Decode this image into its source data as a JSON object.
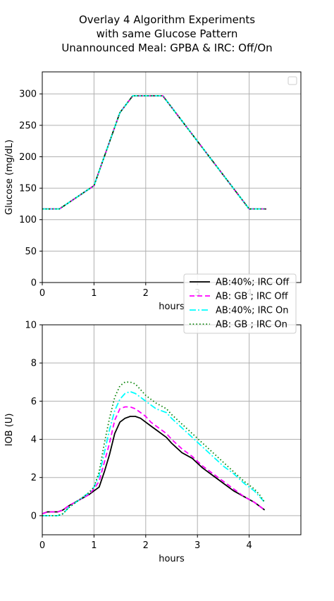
{
  "figure": {
    "title_lines": [
      "Overlay 4 Algorithm Experiments",
      "with same Glucose Pattern",
      "Unannounced Meal: GPBA & IRC: Off/On"
    ],
    "background": "#ffffff"
  },
  "chart_data": [
    {
      "type": "line",
      "title": "",
      "xlabel": "hours",
      "ylabel": "Glucose (mg/dL)",
      "xlim": [
        0,
        5
      ],
      "ylim": [
        0,
        335
      ],
      "xticks": [
        0,
        1,
        2,
        3,
        4
      ],
      "yticks": [
        0,
        50,
        100,
        150,
        200,
        250,
        300
      ],
      "grid": true,
      "legend": "empty box, top-right",
      "series": [
        {
          "name": "AB:40%; IRC Off",
          "color": "#000000",
          "style": "solid",
          "x": [
            0,
            0.33,
            1.0,
            1.5,
            1.75,
            2.33,
            4.0,
            4.33
          ],
          "y": [
            117,
            117,
            154,
            270,
            297,
            297,
            117,
            117
          ]
        },
        {
          "name": "AB: GB ; IRC Off",
          "color": "#ff00ff",
          "style": "dashed",
          "x": [
            0,
            0.33,
            1.0,
            1.5,
            1.75,
            2.33,
            4.0,
            4.33
          ],
          "y": [
            117,
            117,
            154,
            270,
            297,
            297,
            117,
            117
          ]
        },
        {
          "name": "AB:40%; IRC On",
          "color": "#00ffff",
          "style": "dashdot",
          "x": [
            0,
            0.33,
            1.0,
            1.5,
            1.75,
            2.33,
            4.0,
            4.33
          ],
          "y": [
            117,
            117,
            154,
            270,
            297,
            297,
            117,
            117
          ]
        },
        {
          "name": "AB: GB ; IRC On",
          "color": "#008000",
          "style": "dotted",
          "x": [
            0,
            0.33,
            1.0,
            1.5,
            1.75,
            2.33,
            4.0,
            4.33
          ],
          "y": [
            117,
            117,
            154,
            270,
            297,
            297,
            117,
            117
          ]
        }
      ]
    },
    {
      "type": "line",
      "title": "",
      "xlabel": "hours",
      "ylabel": "IOB (U)",
      "xlim": [
        0,
        5
      ],
      "ylim": [
        -1,
        10
      ],
      "xticks": [
        0,
        1,
        2,
        3,
        4
      ],
      "yticks": [
        0,
        2,
        4,
        6,
        8,
        10
      ],
      "grid": true,
      "legend": "top-right, overlapping both panels",
      "series": [
        {
          "name": "AB:40%; IRC Off",
          "color": "#000000",
          "style": "solid",
          "x": [
            0,
            0.1,
            0.3,
            0.4,
            0.5,
            0.7,
            0.9,
            1.0,
            1.1,
            1.2,
            1.3,
            1.4,
            1.5,
            1.6,
            1.7,
            1.8,
            1.9,
            2.0,
            2.1,
            2.2,
            2.4,
            2.5,
            2.7,
            2.9,
            3.1,
            3.3,
            3.5,
            3.7,
            3.9,
            4.1,
            4.2,
            4.3
          ],
          "y": [
            0.1,
            0.2,
            0.2,
            0.3,
            0.5,
            0.8,
            1.1,
            1.3,
            1.5,
            2.3,
            3.2,
            4.3,
            4.9,
            5.1,
            5.2,
            5.2,
            5.1,
            4.9,
            4.7,
            4.5,
            4.1,
            3.8,
            3.3,
            3.0,
            2.5,
            2.1,
            1.7,
            1.3,
            1.0,
            0.7,
            0.5,
            0.3
          ]
        },
        {
          "name": "AB: GB ; IRC Off",
          "color": "#ff00ff",
          "style": "dashed",
          "x": [
            0,
            0.1,
            0.3,
            0.4,
            0.5,
            0.7,
            0.9,
            1.0,
            1.1,
            1.2,
            1.3,
            1.4,
            1.5,
            1.6,
            1.7,
            1.8,
            1.9,
            2.0,
            2.1,
            2.2,
            2.4,
            2.5,
            2.7,
            2.9,
            3.1,
            3.3,
            3.5,
            3.7,
            3.9,
            4.1,
            4.2,
            4.3
          ],
          "y": [
            0.1,
            0.2,
            0.2,
            0.3,
            0.5,
            0.8,
            1.1,
            1.4,
            1.8,
            2.8,
            3.8,
            5.0,
            5.6,
            5.7,
            5.7,
            5.6,
            5.4,
            5.2,
            4.9,
            4.7,
            4.3,
            4.0,
            3.5,
            3.1,
            2.6,
            2.2,
            1.8,
            1.4,
            1.0,
            0.7,
            0.5,
            0.3
          ]
        },
        {
          "name": "AB:40%; IRC On",
          "color": "#00ffff",
          "style": "dashdot",
          "x": [
            0,
            0.1,
            0.3,
            0.4,
            0.5,
            0.7,
            0.9,
            1.0,
            1.1,
            1.2,
            1.3,
            1.4,
            1.5,
            1.6,
            1.7,
            1.8,
            1.9,
            2.0,
            2.1,
            2.2,
            2.4,
            2.5,
            2.7,
            2.9,
            3.1,
            3.3,
            3.5,
            3.7,
            3.9,
            4.1,
            4.2,
            4.3
          ],
          "y": [
            0.0,
            0.0,
            0.0,
            0.1,
            0.4,
            0.8,
            1.2,
            1.5,
            2.1,
            3.3,
            4.5,
            5.5,
            6.1,
            6.4,
            6.5,
            6.4,
            6.2,
            6.0,
            5.8,
            5.6,
            5.4,
            5.1,
            4.6,
            4.1,
            3.6,
            3.1,
            2.6,
            2.2,
            1.7,
            1.3,
            1.0,
            0.7
          ]
        },
        {
          "name": "AB: GB ; IRC On",
          "color": "#008000",
          "style": "dotted",
          "x": [
            0,
            0.1,
            0.3,
            0.4,
            0.5,
            0.7,
            0.9,
            1.0,
            1.1,
            1.2,
            1.3,
            1.4,
            1.5,
            1.6,
            1.7,
            1.8,
            1.9,
            2.0,
            2.1,
            2.2,
            2.4,
            2.5,
            2.7,
            2.9,
            3.1,
            3.3,
            3.5,
            3.7,
            3.9,
            4.1,
            4.2,
            4.3
          ],
          "y": [
            0.0,
            0.0,
            0.0,
            0.1,
            0.4,
            0.8,
            1.2,
            1.5,
            2.3,
            3.8,
            5.1,
            6.2,
            6.8,
            7.0,
            7.0,
            6.9,
            6.6,
            6.3,
            6.1,
            5.9,
            5.6,
            5.3,
            4.8,
            4.3,
            3.8,
            3.3,
            2.8,
            2.3,
            1.8,
            1.4,
            1.1,
            0.7
          ]
        }
      ]
    }
  ],
  "legend": {
    "entries": [
      {
        "label": "AB:40%; IRC Off",
        "color": "#000000",
        "style": "solid"
      },
      {
        "label": "AB: GB ; IRC Off",
        "color": "#ff00ff",
        "style": "dashed"
      },
      {
        "label": "AB:40%; IRC On",
        "color": "#00ffff",
        "style": "dashdot"
      },
      {
        "label": "AB: GB ; IRC On",
        "color": "#008000",
        "style": "dotted"
      }
    ]
  }
}
